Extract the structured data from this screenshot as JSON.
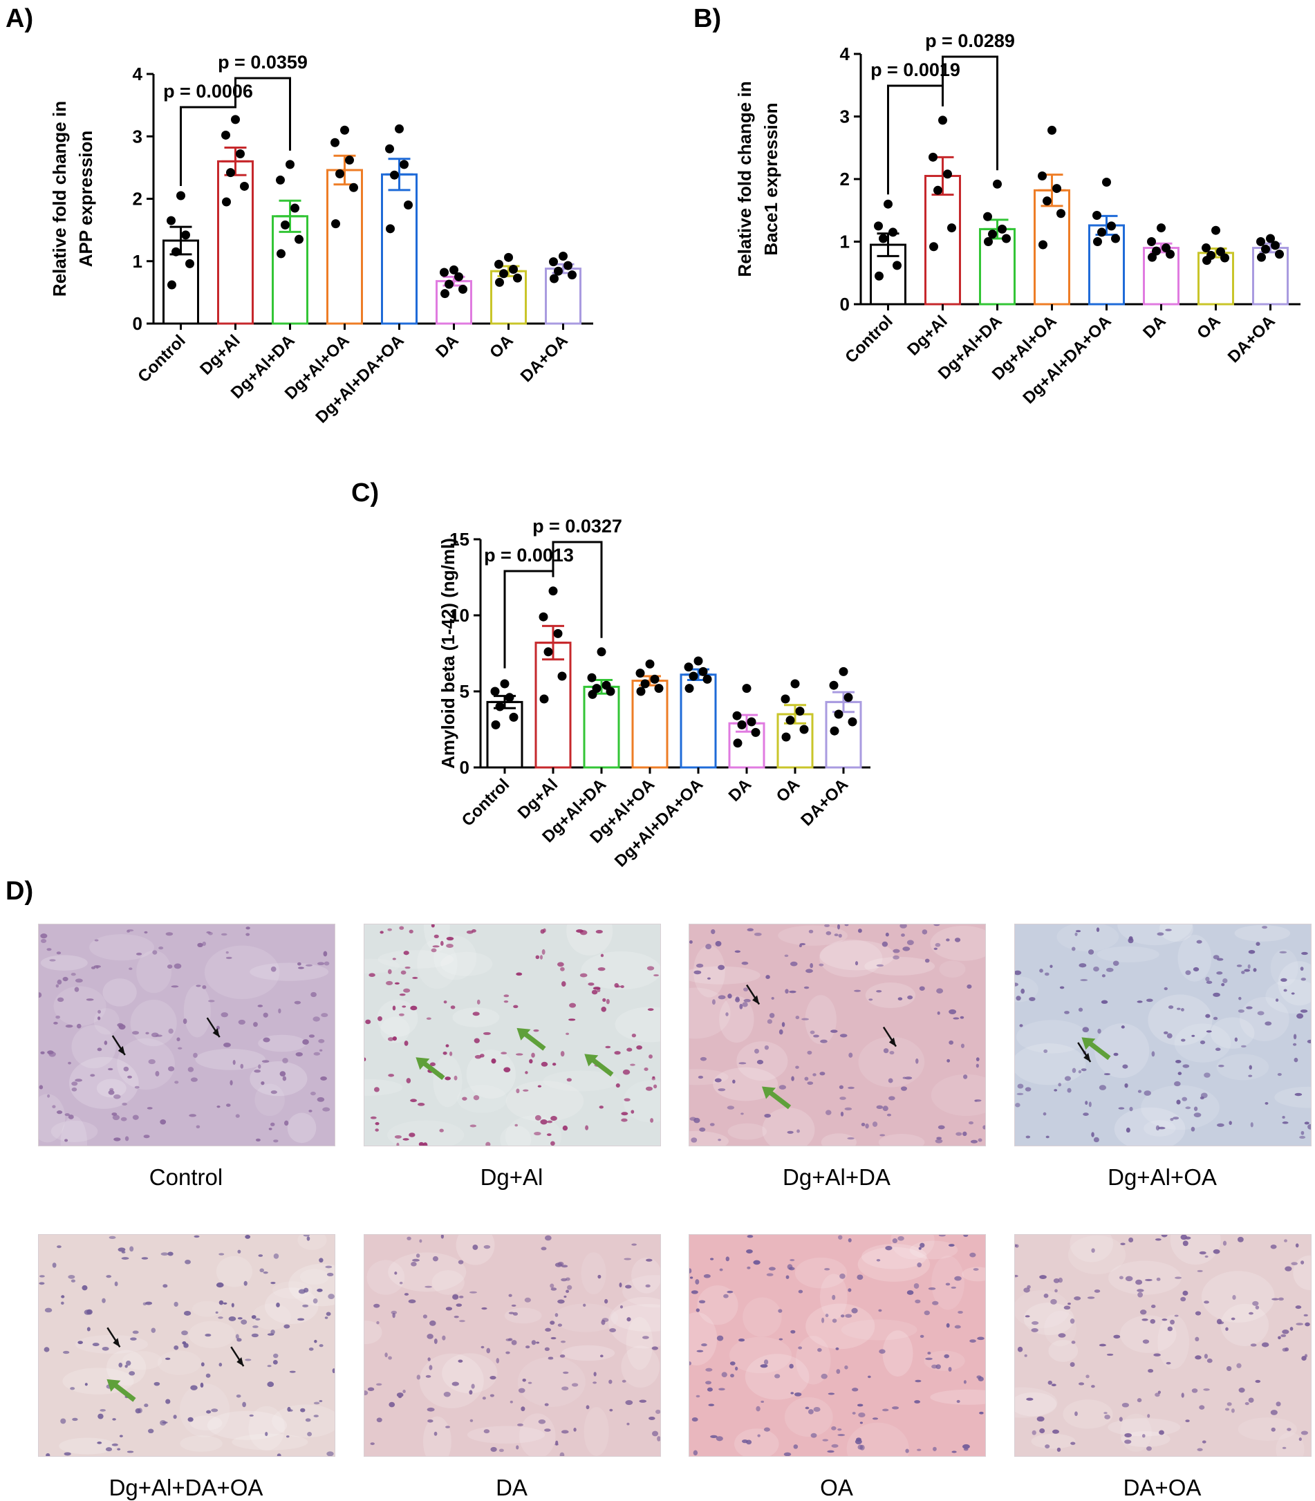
{
  "panels": {
    "a": "A)",
    "b": "B)",
    "c": "C)",
    "d": "D)"
  },
  "chart_data": [
    {
      "type": "bar",
      "ylabel": "Relative fold change in APP expression",
      "ylabel_lines": [
        "Relative fold change in",
        "APP expression"
      ],
      "ylim": [
        0,
        4
      ],
      "yticks": [
        "0",
        "1",
        "2",
        "3",
        "4"
      ],
      "categories": [
        "Control",
        "Dg+Al",
        "Dg+Al+DA",
        "Dg+Al+OA",
        "Dg+Al+DA+OA",
        "DA",
        "OA",
        "DA+OA"
      ],
      "means": [
        1.33,
        2.6,
        1.72,
        2.46,
        2.39,
        0.68,
        0.84,
        0.88
      ],
      "sem": [
        0.22,
        0.22,
        0.25,
        0.23,
        0.25,
        0.07,
        0.08,
        0.07
      ],
      "points": [
        [
          0.62,
          0.96,
          1.15,
          1.42,
          1.65,
          2.05
        ],
        [
          1.95,
          2.2,
          2.42,
          2.72,
          3.02,
          3.27
        ],
        [
          1.12,
          1.35,
          1.58,
          1.85,
          2.3,
          2.55
        ],
        [
          1.6,
          2.18,
          2.4,
          2.62,
          2.9,
          3.1
        ],
        [
          1.52,
          1.9,
          2.38,
          2.55,
          2.8,
          3.12
        ],
        [
          0.48,
          0.55,
          0.63,
          0.75,
          0.82,
          0.86
        ],
        [
          0.66,
          0.73,
          0.8,
          0.87,
          0.95,
          1.06
        ],
        [
          0.72,
          0.78,
          0.84,
          0.93,
          0.99,
          1.08
        ]
      ],
      "colors": [
        "#000000",
        "#c6282c",
        "#33c536",
        "#ee7d26",
        "#1f6bd8",
        "#e07be0",
        "#c9c52a",
        "#a99be0"
      ],
      "comparisons": [
        {
          "from": 0,
          "to": 1,
          "label": "p = 0.0006"
        },
        {
          "from": 1,
          "to": 2,
          "label": "p = 0.0359"
        }
      ]
    },
    {
      "type": "bar",
      "ylabel": "Relative fold change in Bace1 expression",
      "ylabel_lines": [
        "Relative fold change in",
        "Bace1 expression"
      ],
      "ylim": [
        0,
        4
      ],
      "yticks": [
        "0",
        "1",
        "2",
        "3",
        "4"
      ],
      "categories": [
        "Control",
        "Dg+Al",
        "Dg+Al+DA",
        "Dg+Al+OA",
        "Dg+Al+DA+OA",
        "DA",
        "OA",
        "DA+OA"
      ],
      "means": [
        0.95,
        2.05,
        1.2,
        1.82,
        1.26,
        0.9,
        0.82,
        0.9
      ],
      "sem": [
        0.18,
        0.3,
        0.15,
        0.25,
        0.15,
        0.07,
        0.07,
        0.07
      ],
      "points": [
        [
          0.45,
          0.62,
          1.05,
          1.15,
          1.25,
          1.6
        ],
        [
          0.92,
          1.22,
          1.82,
          2.08,
          2.35,
          2.94
        ],
        [
          1.0,
          1.05,
          1.12,
          1.2,
          1.4,
          1.92
        ],
        [
          0.95,
          1.45,
          1.65,
          1.85,
          2.05,
          2.78
        ],
        [
          1.0,
          1.05,
          1.15,
          1.25,
          1.42,
          1.95
        ],
        [
          0.75,
          0.8,
          0.85,
          0.9,
          1.0,
          1.22
        ],
        [
          0.7,
          0.74,
          0.78,
          0.84,
          0.9,
          1.18
        ],
        [
          0.75,
          0.8,
          0.88,
          0.94,
          1.0,
          1.05
        ]
      ],
      "colors": [
        "#000000",
        "#c6282c",
        "#33c536",
        "#ee7d26",
        "#1f6bd8",
        "#e07be0",
        "#c9c52a",
        "#a99be0"
      ],
      "comparisons": [
        {
          "from": 0,
          "to": 1,
          "label": "p = 0.0019"
        },
        {
          "from": 1,
          "to": 2,
          "label": "p = 0.0289"
        }
      ]
    },
    {
      "type": "bar",
      "ylabel": "Amyloid beta (1-42) (ng/ml)",
      "ylabel_lines": [
        "Amyloid beta (1-42) (ng/ml)"
      ],
      "ylim": [
        0,
        15
      ],
      "yticks": [
        "0",
        "5",
        "10",
        "15"
      ],
      "categories": [
        "Control",
        "Dg+Al",
        "Dg+Al+DA",
        "Dg+Al+OA",
        "Dg+Al+DA+OA",
        "DA",
        "OA",
        "DA+OA"
      ],
      "means": [
        4.3,
        8.2,
        5.3,
        5.7,
        6.1,
        2.9,
        3.5,
        4.3
      ],
      "sem": [
        0.4,
        1.1,
        0.45,
        0.3,
        0.35,
        0.55,
        0.6,
        0.65
      ],
      "points": [
        [
          2.8,
          3.3,
          4.0,
          4.6,
          5.0,
          5.5
        ],
        [
          4.5,
          6.0,
          7.6,
          8.8,
          9.9,
          11.6
        ],
        [
          4.8,
          5.0,
          5.2,
          5.4,
          5.9,
          7.6
        ],
        [
          5.0,
          5.2,
          5.5,
          5.8,
          6.2,
          6.8
        ],
        [
          5.2,
          5.8,
          6.0,
          6.3,
          6.6,
          7.0
        ],
        [
          1.6,
          2.3,
          2.8,
          3.0,
          3.4,
          5.2
        ],
        [
          2.0,
          2.5,
          3.1,
          3.7,
          4.5,
          5.5
        ],
        [
          2.4,
          3.0,
          3.5,
          4.6,
          5.4,
          6.3
        ]
      ],
      "colors": [
        "#000000",
        "#c6282c",
        "#33c536",
        "#ee7d26",
        "#1f6bd8",
        "#e07be0",
        "#c9c52a",
        "#a99be0"
      ],
      "comparisons": [
        {
          "from": 0,
          "to": 1,
          "label": "p = 0.0013"
        },
        {
          "from": 1,
          "to": 2,
          "label": "p = 0.0327"
        }
      ]
    }
  ],
  "micrographs": [
    {
      "caption": "Control",
      "tone": "#c9b6cf",
      "cell": "#8d6a9f",
      "black_arrows": 2,
      "green_arrows": 0
    },
    {
      "caption": "Dg+Al",
      "tone": "#dbe2e2",
      "cell": "#9a2f6e",
      "black_arrows": 0,
      "green_arrows": 3
    },
    {
      "caption": "Dg+Al+DA",
      "tone": "#dfb9c3",
      "cell": "#7b5f9c",
      "black_arrows": 2,
      "green_arrows": 1
    },
    {
      "caption": "Dg+Al+OA",
      "tone": "#c7cfdf",
      "cell": "#6f5a98",
      "black_arrows": 1,
      "green_arrows": 1
    },
    {
      "caption": "Dg+Al+DA+OA",
      "tone": "#e7d6d5",
      "cell": "#6e5a96",
      "black_arrows": 2,
      "green_arrows": 1
    },
    {
      "caption": "DA",
      "tone": "#e4c9cd",
      "cell": "#7c5f98",
      "black_arrows": 0,
      "green_arrows": 0
    },
    {
      "caption": "OA",
      "tone": "#e9b7be",
      "cell": "#6f5a99",
      "black_arrows": 0,
      "green_arrows": 0
    },
    {
      "caption": "DA+OA",
      "tone": "#e5cfd1",
      "cell": "#7a5e99",
      "black_arrows": 0,
      "green_arrows": 0
    }
  ]
}
